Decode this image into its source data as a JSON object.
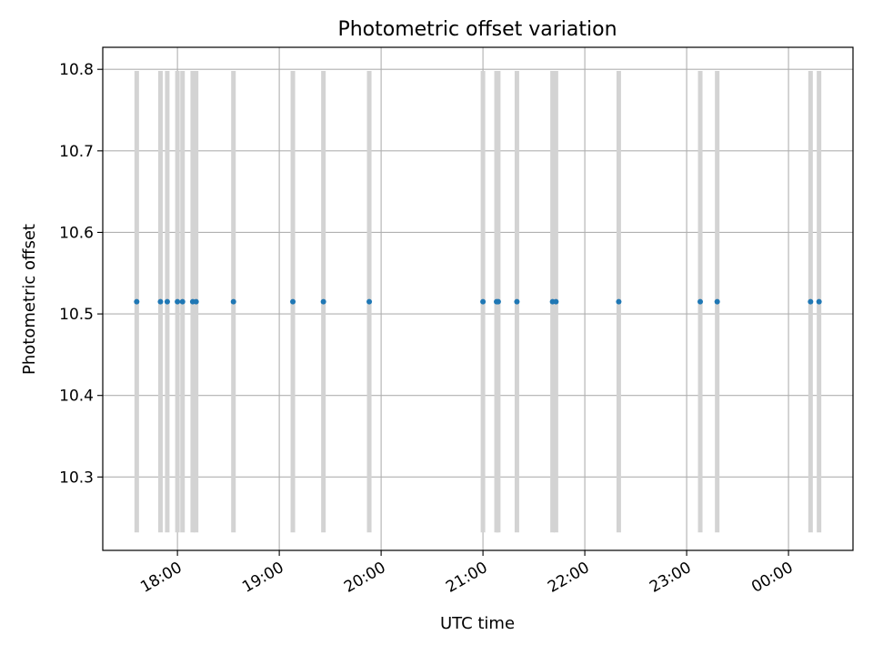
{
  "chart_data": {
    "type": "scatter",
    "title": "Photometric offset variation",
    "xlabel": "UTC time",
    "ylabel": "Photometric offset",
    "ylim": [
      10.21,
      10.827
    ],
    "xlim": [
      "17:16",
      "00:38"
    ],
    "grid": true,
    "x_ticks": [
      "18:00",
      "19:00",
      "20:00",
      "21:00",
      "22:00",
      "23:00",
      "00:00"
    ],
    "y_ticks": [
      "10.3",
      "10.4",
      "10.5",
      "10.6",
      "10.7",
      "10.8"
    ],
    "series": [
      {
        "points": [
          {
            "x": "17:36",
            "y": 10.515
          },
          {
            "x": "17:50",
            "y": 10.515
          },
          {
            "x": "17:54",
            "y": 10.515
          },
          {
            "x": "18:00",
            "y": 10.515
          },
          {
            "x": "18:03",
            "y": 10.515
          },
          {
            "x": "18:09",
            "y": 10.515
          },
          {
            "x": "18:11",
            "y": 10.515
          },
          {
            "x": "18:33",
            "y": 10.515
          },
          {
            "x": "19:08",
            "y": 10.515
          },
          {
            "x": "19:26",
            "y": 10.515
          },
          {
            "x": "19:53",
            "y": 10.515
          },
          {
            "x": "21:00",
            "y": 10.515
          },
          {
            "x": "21:08",
            "y": 10.515
          },
          {
            "x": "21:09",
            "y": 10.515
          },
          {
            "x": "21:20",
            "y": 10.515
          },
          {
            "x": "21:41",
            "y": 10.515
          },
          {
            "x": "21:43",
            "y": 10.515
          },
          {
            "x": "22:20",
            "y": 10.515
          },
          {
            "x": "23:08",
            "y": 10.515
          },
          {
            "x": "23:18",
            "y": 10.515
          },
          {
            "x": "00:13",
            "y": 10.515
          },
          {
            "x": "00:18",
            "y": 10.515
          }
        ],
        "error_low": 10.232,
        "error_high": 10.798,
        "color": "#1f77b4",
        "errorbar_color": "#d3d3d3"
      }
    ]
  }
}
